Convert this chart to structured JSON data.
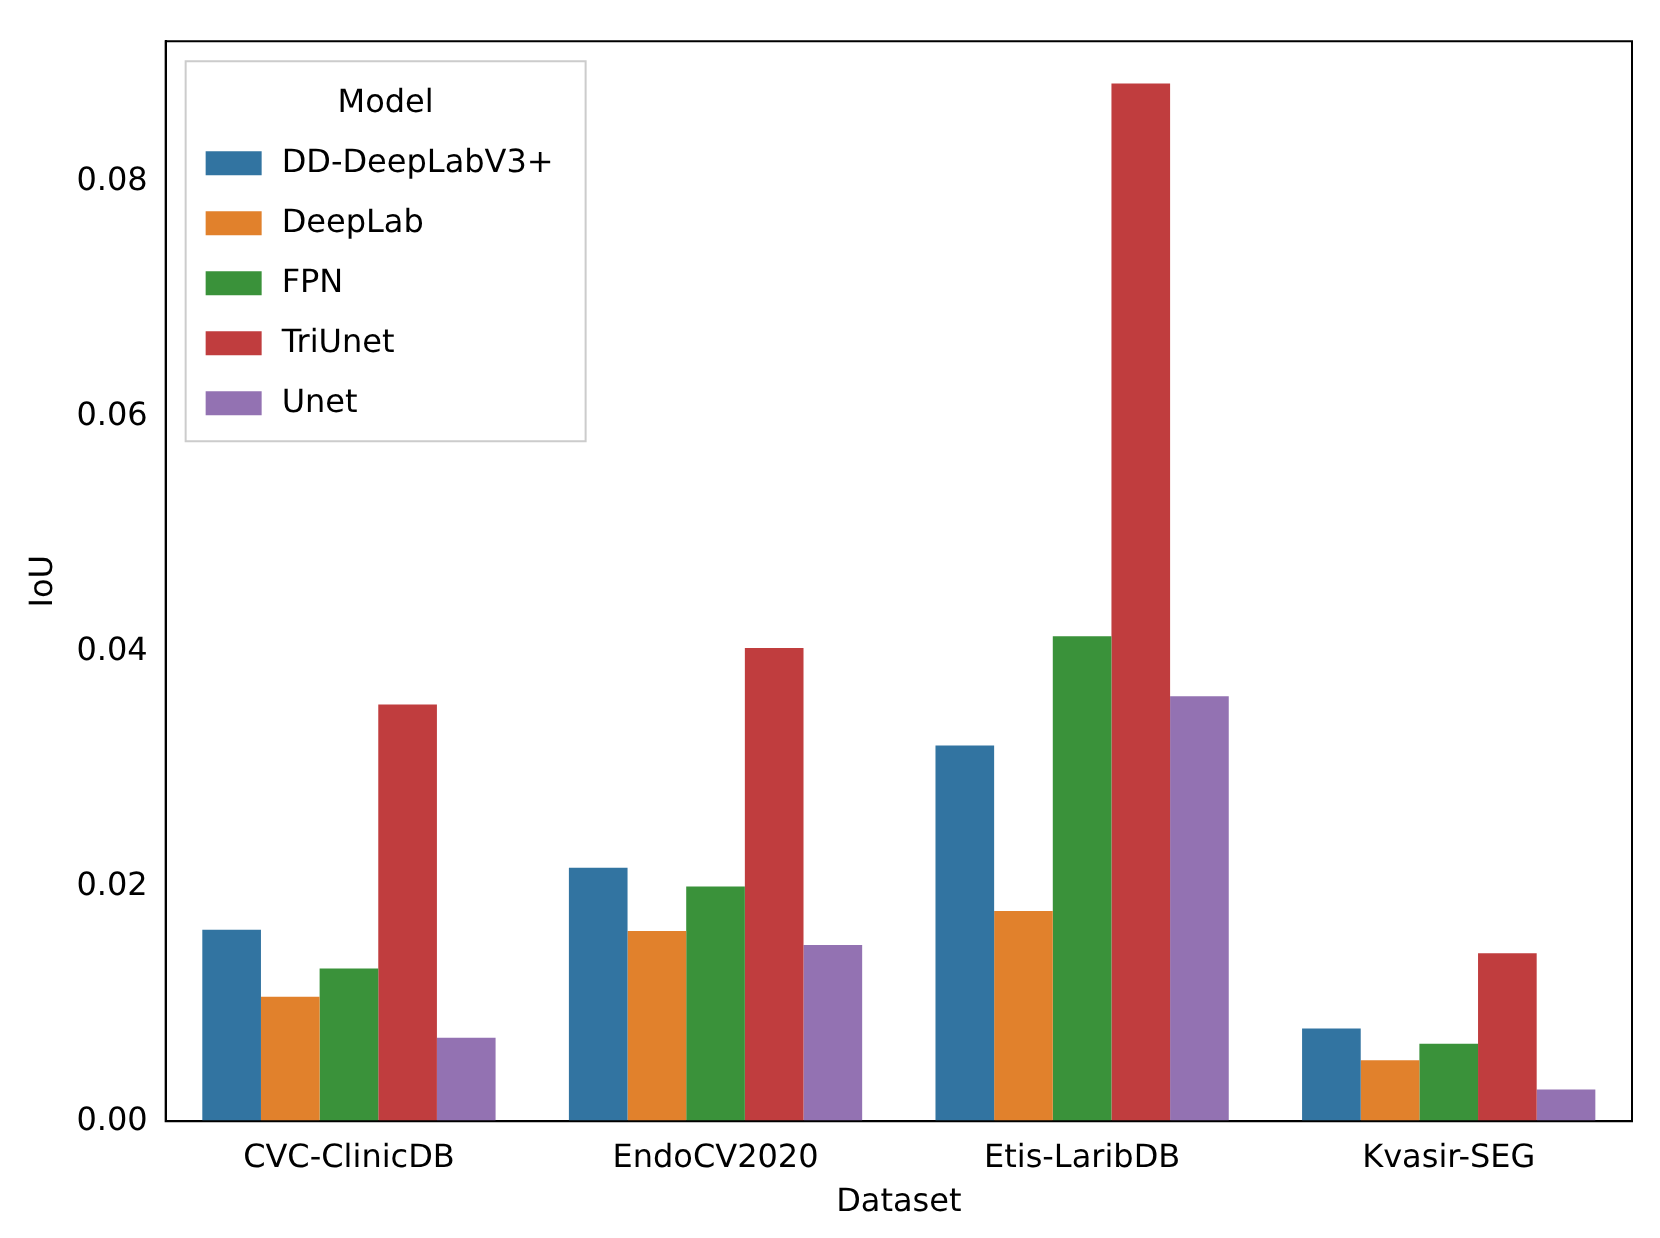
{
  "chart_data": {
    "type": "bar",
    "xlabel": "Dataset",
    "ylabel": "IoU",
    "legend_title": "Model",
    "legend": "top left",
    "grid": false,
    "categories": [
      "CVC-ClinicDB",
      "EndoCV2020",
      "Etis-LaribDB",
      "Kvasir-SEG"
    ],
    "series": [
      {
        "name": "DD-DeepLabV3+",
        "color": "#3274a1",
        "values": [
          0.0163,
          0.0216,
          0.032,
          0.0079
        ]
      },
      {
        "name": "DeepLab",
        "color": "#e1812c",
        "values": [
          0.0106,
          0.0162,
          0.0179,
          0.0052
        ]
      },
      {
        "name": "FPN",
        "color": "#3a923a",
        "values": [
          0.013,
          0.02,
          0.0413,
          0.0066
        ]
      },
      {
        "name": "TriUnet",
        "color": "#c03d3e",
        "values": [
          0.0355,
          0.0403,
          0.0884,
          0.0143
        ]
      },
      {
        "name": "Unet",
        "color": "#9372b2",
        "values": [
          0.0071,
          0.015,
          0.0362,
          0.0027
        ]
      }
    ],
    "ylim": [
      0,
      0.092
    ],
    "yticks": [
      {
        "value": 0,
        "label": "0.00"
      },
      {
        "value": 0.02,
        "label": "0.02"
      },
      {
        "value": 0.04,
        "label": "0.04"
      },
      {
        "value": 0.06,
        "label": "0.06"
      },
      {
        "value": 0.08,
        "label": "0.08"
      }
    ]
  }
}
